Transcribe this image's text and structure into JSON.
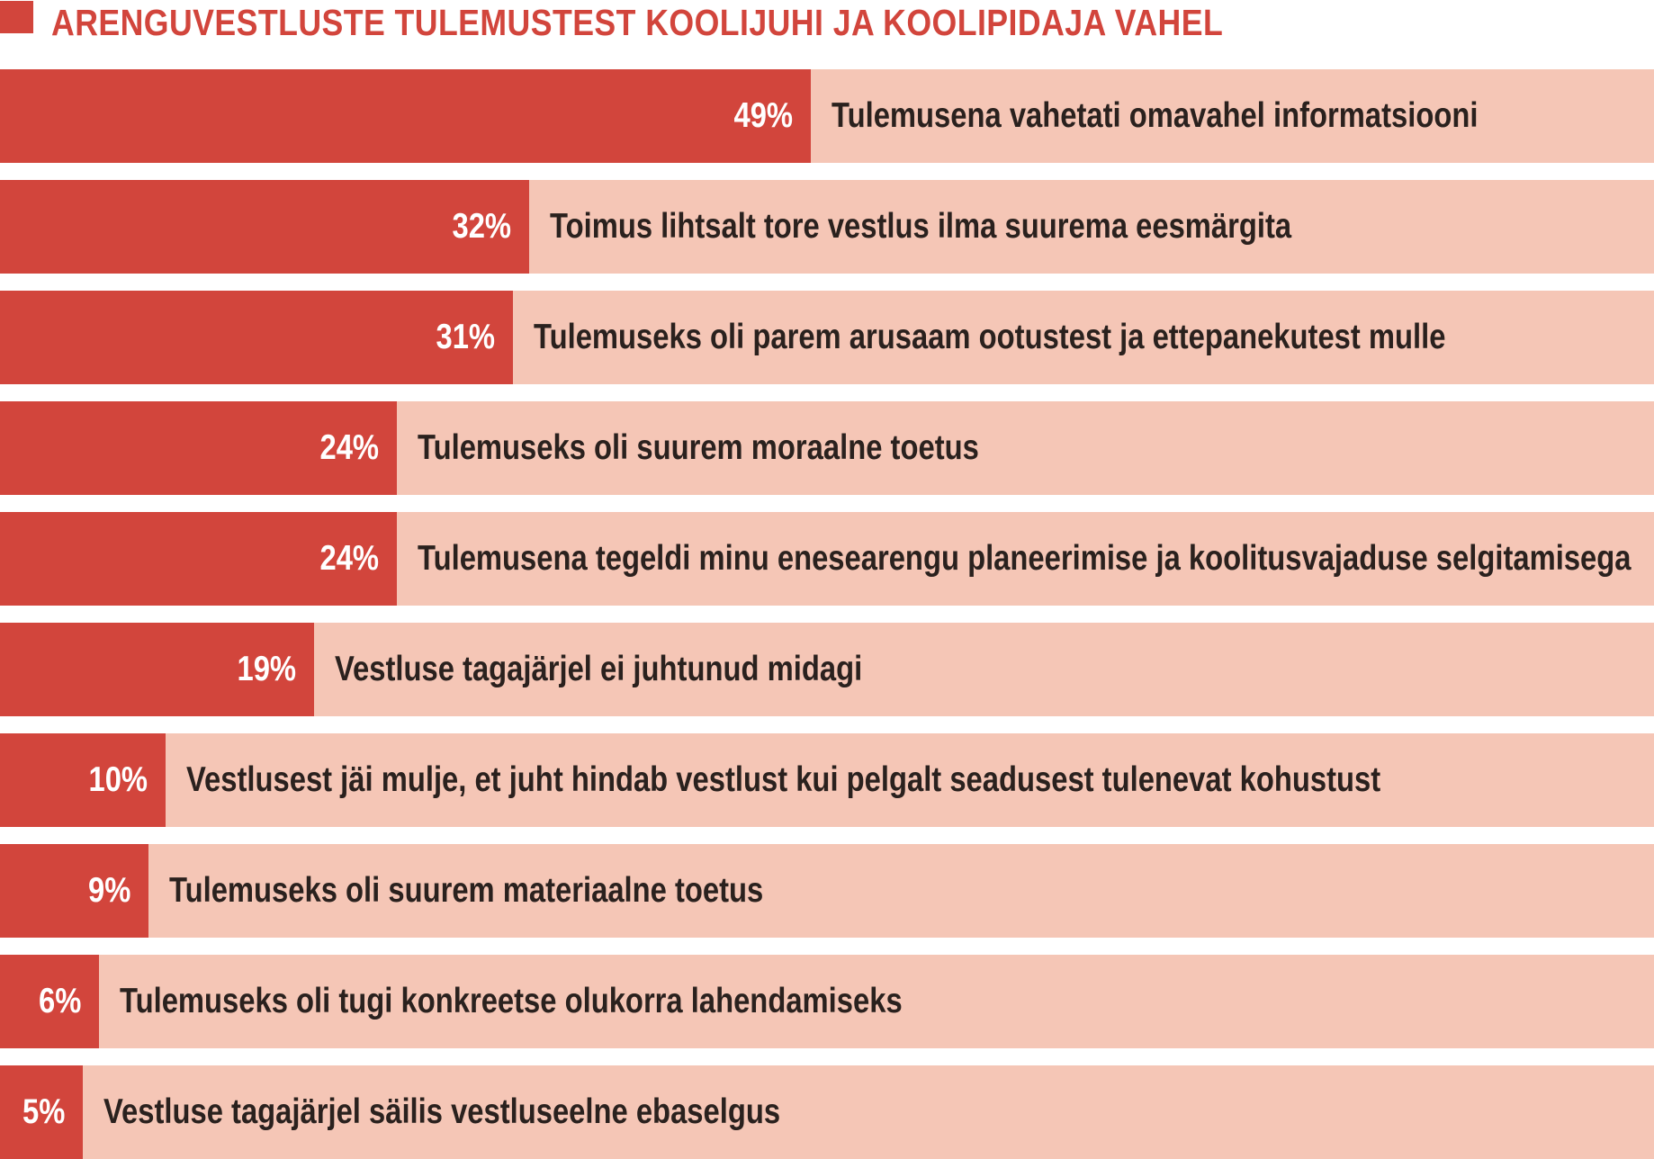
{
  "header": {
    "title": "ARENGUVESTLUSTE TULEMUSTEST KOOLIJUHI JA KOOLIPIDAJA VAHEL"
  },
  "colors": {
    "bar_red": "#d2453c",
    "track_pink": "#f5c6b6",
    "title_red": "#d2453c",
    "value_label_white": "#ffffff",
    "category_text_dark": "#2a211e",
    "background": "#ffffff"
  },
  "chart_data": {
    "type": "bar",
    "orientation": "horizontal",
    "title": "ARENGUVESTLUSTE TULEMUSTEST KOOLIJUHI JA KOOLIPIDAJA VAHEL",
    "unit": "%",
    "xlim": [
      0,
      100
    ],
    "grid": false,
    "legend": false,
    "value_label_position": "inside-end",
    "category_label_position": "right-of-bar",
    "categories": [
      "Tulemusena vahetati omavahel informatsiooni",
      "Toimus lihtsalt tore vestlus ilma suurema eesmärgita",
      "Tulemuseks oli parem arusaam ootustest ja ettepanekutest mulle",
      "Tulemuseks oli suurem moraalne toetus",
      "Tulemusena tegeldi minu enesearengu planeerimise ja koolitusvajaduse selgitamisega",
      "Vestluse tagajärjel ei juhtunud midagi",
      "Vestlusest jäi mulje, et juht hindab vestlust kui pelgalt seadusest tulenevat kohustust",
      "Tulemuseks oli suurem materiaalne toetus",
      "Tulemuseks oli tugi konkreetse olukorra lahendamiseks",
      "Vestluse tagajärjel säilis vestluseelne ebaselgus"
    ],
    "values": [
      49,
      32,
      31,
      24,
      24,
      19,
      10,
      9,
      6,
      5
    ],
    "value_labels": [
      "49%",
      "32%",
      "31%",
      "24%",
      "24%",
      "19%",
      "10%",
      "9%",
      "6%",
      "5%"
    ]
  }
}
